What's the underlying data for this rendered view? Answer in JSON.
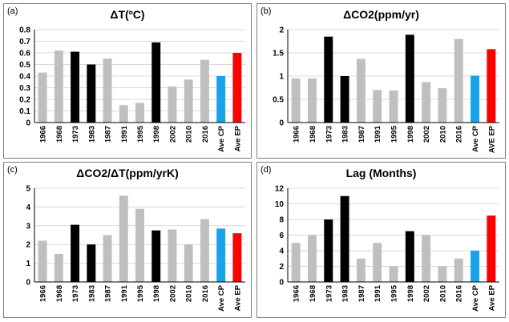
{
  "chart_data": [
    {
      "type": "bar",
      "panel_label": "(a)",
      "title": "ΔT(ºC)",
      "categories": [
        "1966",
        "1968",
        "1973",
        "1983",
        "1987",
        "1991",
        "1995",
        "1998",
        "2002",
        "2010",
        "2016",
        "Ave CP",
        "Ave EP"
      ],
      "values": [
        0.43,
        0.62,
        0.61,
        0.5,
        0.55,
        0.15,
        0.17,
        0.69,
        0.31,
        0.37,
        0.54,
        0.4,
        0.6
      ],
      "colors": [
        "#bfbfbf",
        "#bfbfbf",
        "#000000",
        "#000000",
        "#bfbfbf",
        "#bfbfbf",
        "#bfbfbf",
        "#000000",
        "#bfbfbf",
        "#bfbfbf",
        "#bfbfbf",
        "#1aa3e8",
        "#ff0000"
      ],
      "ylim": [
        0,
        0.8
      ],
      "yticks": [
        "0",
        "0.1",
        "0.2",
        "0.3",
        "0.4",
        "0.5",
        "0.6",
        "0.7",
        "0.8"
      ],
      "xlabel": "",
      "ylabel": "",
      "grid": true
    },
    {
      "type": "bar",
      "panel_label": "(b)",
      "title": "ΔCO2(ppm/yr)",
      "categories": [
        "1966",
        "1968",
        "1973",
        "1983",
        "1987",
        "1991",
        "1995",
        "1998",
        "2002",
        "2010",
        "2016",
        "Ave CP",
        "AVE EP"
      ],
      "values": [
        0.95,
        0.95,
        1.85,
        1.0,
        1.37,
        0.7,
        0.69,
        1.89,
        0.87,
        0.74,
        1.8,
        1.01,
        1.58
      ],
      "colors": [
        "#bfbfbf",
        "#bfbfbf",
        "#000000",
        "#000000",
        "#bfbfbf",
        "#bfbfbf",
        "#bfbfbf",
        "#000000",
        "#bfbfbf",
        "#bfbfbf",
        "#bfbfbf",
        "#1aa3e8",
        "#ff0000"
      ],
      "ylim": [
        0,
        2
      ],
      "yticks": [
        "0",
        "0.5",
        "1",
        "1.5",
        "2"
      ],
      "xlabel": "",
      "ylabel": "",
      "grid": true
    },
    {
      "type": "bar",
      "panel_label": "(c)",
      "title": "ΔCO2/ΔT(ppm/yrK)",
      "categories": [
        "1966",
        "1968",
        "1973",
        "1983",
        "1987",
        "1991",
        "1995",
        "1998",
        "2002",
        "2010",
        "2016",
        "Ave CP",
        "Ave EP"
      ],
      "values": [
        2.2,
        1.5,
        3.05,
        2.0,
        2.5,
        4.6,
        3.9,
        2.75,
        2.8,
        2.0,
        3.35,
        2.85,
        2.6
      ],
      "colors": [
        "#bfbfbf",
        "#bfbfbf",
        "#000000",
        "#000000",
        "#bfbfbf",
        "#bfbfbf",
        "#bfbfbf",
        "#000000",
        "#bfbfbf",
        "#bfbfbf",
        "#bfbfbf",
        "#1aa3e8",
        "#ff0000"
      ],
      "ylim": [
        0,
        5
      ],
      "yticks": [
        "0",
        "1",
        "2",
        "3",
        "4",
        "5"
      ],
      "xlabel": "",
      "ylabel": "",
      "grid": true
    },
    {
      "type": "bar",
      "panel_label": "(d)",
      "title": "Lag (Months)",
      "categories": [
        "1966",
        "1968",
        "1973",
        "1983",
        "1987",
        "1991",
        "1995",
        "1998",
        "2002",
        "2010",
        "2016",
        "Ave CP",
        "Ave EP"
      ],
      "values": [
        5,
        6,
        8,
        11,
        3,
        5,
        2,
        6.5,
        6,
        2,
        3,
        4,
        8.5
      ],
      "colors": [
        "#bfbfbf",
        "#bfbfbf",
        "#000000",
        "#000000",
        "#bfbfbf",
        "#bfbfbf",
        "#bfbfbf",
        "#000000",
        "#bfbfbf",
        "#bfbfbf",
        "#bfbfbf",
        "#1aa3e8",
        "#ff0000"
      ],
      "ylim": [
        0,
        12
      ],
      "yticks": [
        "0",
        "2",
        "4",
        "6",
        "8",
        "10",
        "12"
      ],
      "xlabel": "",
      "ylabel": "",
      "grid": true
    }
  ]
}
